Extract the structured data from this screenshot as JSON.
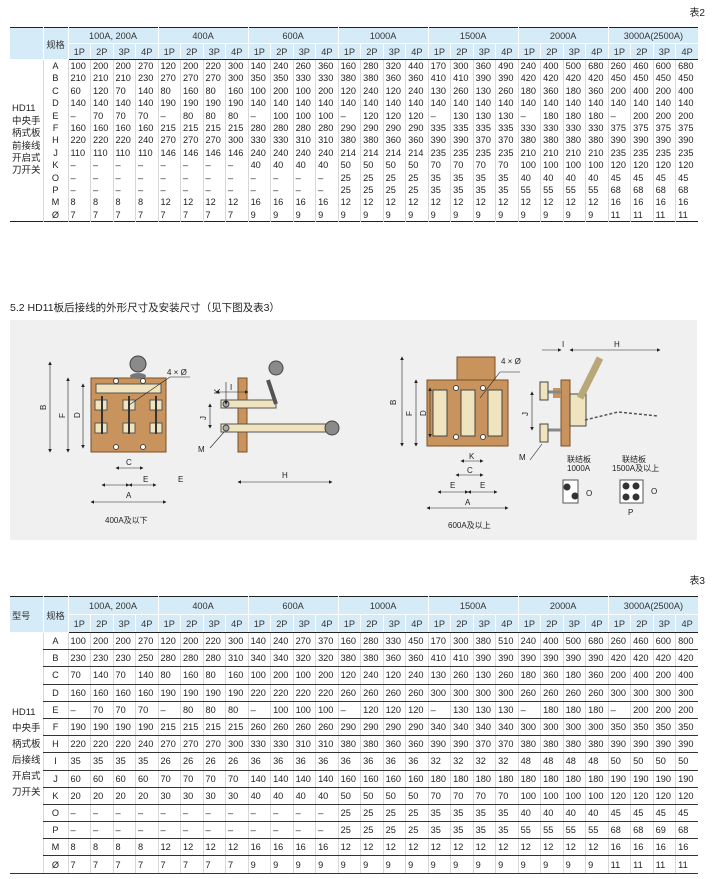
{
  "table2": {
    "label": "表2",
    "model_header": "",
    "spec_header": "规格",
    "model_label_lines": [
      "HD11",
      "中央手",
      "柄式板",
      "前接线",
      "开启式",
      "刀开关"
    ],
    "groups": [
      "100A, 200A",
      "400A",
      "600A",
      "1000A",
      "1500A",
      "2000A",
      "3000A(2500A)"
    ],
    "poles": [
      "1P",
      "2P",
      "3P",
      "4P"
    ],
    "rows": [
      {
        "spec": "A",
        "values": [
          "100",
          "200",
          "200",
          "270",
          "120",
          "200",
          "220",
          "300",
          "140",
          "240",
          "260",
          "360",
          "160",
          "280",
          "320",
          "440",
          "170",
          "300",
          "360",
          "490",
          "240",
          "400",
          "500",
          "680",
          "260",
          "460",
          "600",
          "680"
        ]
      },
      {
        "spec": "B",
        "values": [
          "210",
          "210",
          "210",
          "230",
          "270",
          "270",
          "270",
          "300",
          "350",
          "350",
          "330",
          "330",
          "380",
          "380",
          "360",
          "360",
          "410",
          "410",
          "390",
          "390",
          "420",
          "420",
          "420",
          "420",
          "450",
          "450",
          "450",
          "450"
        ]
      },
      {
        "spec": "C",
        "values": [
          "60",
          "120",
          "70",
          "140",
          "80",
          "160",
          "80",
          "160",
          "100",
          "200",
          "100",
          "200",
          "120",
          "240",
          "120",
          "240",
          "130",
          "260",
          "130",
          "260",
          "180",
          "360",
          "180",
          "360",
          "200",
          "400",
          "200",
          "400"
        ]
      },
      {
        "spec": "D",
        "values": [
          "140",
          "140",
          "140",
          "140",
          "190",
          "190",
          "190",
          "190",
          "140",
          "140",
          "140",
          "140",
          "140",
          "140",
          "140",
          "140",
          "140",
          "140",
          "140",
          "140",
          "140",
          "140",
          "140",
          "140",
          "140",
          "140",
          "140",
          "140"
        ]
      },
      {
        "spec": "E",
        "values": [
          "–",
          "70",
          "70",
          "70",
          "–",
          "80",
          "80",
          "80",
          "–",
          "100",
          "100",
          "100",
          "–",
          "120",
          "120",
          "120",
          "–",
          "130",
          "130",
          "130",
          "–",
          "180",
          "180",
          "180",
          "–",
          "200",
          "200",
          "200"
        ]
      },
      {
        "spec": "F",
        "values": [
          "160",
          "160",
          "160",
          "160",
          "215",
          "215",
          "215",
          "215",
          "280",
          "280",
          "280",
          "280",
          "290",
          "290",
          "290",
          "290",
          "335",
          "335",
          "335",
          "335",
          "330",
          "330",
          "330",
          "330",
          "375",
          "375",
          "375",
          "375"
        ]
      },
      {
        "spec": "H",
        "values": [
          "220",
          "220",
          "220",
          "240",
          "270",
          "270",
          "270",
          "300",
          "330",
          "330",
          "310",
          "310",
          "380",
          "380",
          "360",
          "360",
          "390",
          "390",
          "370",
          "370",
          "380",
          "380",
          "380",
          "380",
          "390",
          "390",
          "390",
          "390"
        ]
      },
      {
        "spec": "J",
        "values": [
          "110",
          "110",
          "110",
          "110",
          "146",
          "146",
          "146",
          "146",
          "240",
          "240",
          "240",
          "240",
          "214",
          "214",
          "214",
          "214",
          "235",
          "235",
          "235",
          "235",
          "210",
          "210",
          "210",
          "210",
          "235",
          "235",
          "235",
          "235"
        ]
      },
      {
        "spec": "K",
        "values": [
          "–",
          "–",
          "–",
          "–",
          "–",
          "–",
          "–",
          "–",
          "40",
          "40",
          "40",
          "40",
          "50",
          "50",
          "50",
          "50",
          "70",
          "70",
          "70",
          "70",
          "100",
          "100",
          "100",
          "100",
          "120",
          "120",
          "120",
          "120"
        ]
      },
      {
        "spec": "O",
        "values": [
          "–",
          "–",
          "–",
          "–",
          "–",
          "–",
          "–",
          "–",
          "–",
          "–",
          "–",
          "–",
          "25",
          "25",
          "25",
          "25",
          "35",
          "35",
          "35",
          "35",
          "40",
          "40",
          "40",
          "40",
          "45",
          "45",
          "45",
          "45"
        ]
      },
      {
        "spec": "P",
        "values": [
          "–",
          "–",
          "–",
          "–",
          "–",
          "–",
          "–",
          "–",
          "–",
          "–",
          "–",
          "–",
          "25",
          "25",
          "25",
          "25",
          "35",
          "35",
          "35",
          "35",
          "55",
          "55",
          "55",
          "55",
          "68",
          "68",
          "68",
          "68"
        ]
      },
      {
        "spec": "M",
        "values": [
          "8",
          "8",
          "8",
          "8",
          "12",
          "12",
          "12",
          "12",
          "16",
          "16",
          "16",
          "16",
          "12",
          "12",
          "12",
          "12",
          "12",
          "12",
          "12",
          "12",
          "12",
          "12",
          "12",
          "12",
          "16",
          "16",
          "16",
          "16"
        ]
      },
      {
        "spec": "Ø",
        "values": [
          "7",
          "7",
          "7",
          "7",
          "7",
          "7",
          "7",
          "7",
          "9",
          "9",
          "9",
          "9",
          "9",
          "9",
          "9",
          "9",
          "9",
          "9",
          "9",
          "9",
          "9",
          "9",
          "9",
          "9",
          "11",
          "11",
          "11",
          "11"
        ]
      }
    ]
  },
  "section_title": "5.2 HD11板后接线的外形尺寸及安装尺寸（见下图及表3）",
  "diagram": {
    "left_caption": "400A及以下",
    "right_caption": "600A及以上",
    "holes_label": "4 × Ø",
    "link_plate_1000": [
      "联结板",
      "1000A"
    ],
    "link_plate_1500": [
      "联结板",
      "1500A及以上"
    ],
    "dims": {
      "A": "A",
      "B": "B",
      "C": "C",
      "D": "D",
      "E": "E",
      "F": "F",
      "H": "H",
      "I": "I",
      "J": "J",
      "K": "K",
      "M": "M",
      "O": "O",
      "P": "P"
    },
    "colors": {
      "plate": "#c8935c",
      "plate_dark": "#8a5a2e",
      "blade": "#efe4bd",
      "knob": "#8a8a8a",
      "panel": "#f0f0f0"
    }
  },
  "table3": {
    "label": "表3",
    "model_header": "型号",
    "spec_header": "规格",
    "model_label_lines": [
      "HD11",
      "中央手",
      "柄式板",
      "后接线",
      "开启式",
      "刀开关"
    ],
    "groups": [
      "100A, 200A",
      "400A",
      "600A",
      "1000A",
      "1500A",
      "2000A",
      "3000A(2500A)"
    ],
    "poles": [
      "1P",
      "2P",
      "3P",
      "4P"
    ],
    "rows": [
      {
        "spec": "A",
        "values": [
          "100",
          "200",
          "200",
          "270",
          "120",
          "200",
          "220",
          "300",
          "140",
          "240",
          "270",
          "370",
          "160",
          "280",
          "330",
          "450",
          "170",
          "300",
          "380",
          "510",
          "240",
          "400",
          "500",
          "680",
          "260",
          "460",
          "600",
          "800"
        ]
      },
      {
        "spec": "B",
        "values": [
          "230",
          "230",
          "230",
          "250",
          "280",
          "280",
          "280",
          "310",
          "340",
          "340",
          "320",
          "320",
          "380",
          "380",
          "360",
          "360",
          "410",
          "410",
          "390",
          "390",
          "390",
          "390",
          "390",
          "390",
          "420",
          "420",
          "420",
          "420"
        ]
      },
      {
        "spec": "C",
        "values": [
          "70",
          "140",
          "70",
          "140",
          "80",
          "160",
          "80",
          "160",
          "100",
          "200",
          "100",
          "200",
          "120",
          "240",
          "120",
          "240",
          "130",
          "260",
          "130",
          "260",
          "180",
          "360",
          "180",
          "360",
          "200",
          "400",
          "200",
          "400"
        ]
      },
      {
        "spec": "D",
        "values": [
          "160",
          "160",
          "160",
          "160",
          "190",
          "190",
          "190",
          "190",
          "220",
          "220",
          "220",
          "220",
          "260",
          "260",
          "260",
          "260",
          "300",
          "300",
          "300",
          "300",
          "260",
          "260",
          "260",
          "260",
          "300",
          "300",
          "300",
          "300"
        ]
      },
      {
        "spec": "E",
        "values": [
          "–",
          "70",
          "70",
          "70",
          "–",
          "80",
          "80",
          "80",
          "–",
          "100",
          "100",
          "100",
          "–",
          "120",
          "120",
          "120",
          "–",
          "130",
          "130",
          "130",
          "–",
          "180",
          "180",
          "180",
          "–",
          "200",
          "200",
          "200"
        ]
      },
      {
        "spec": "F",
        "values": [
          "190",
          "190",
          "190",
          "190",
          "215",
          "215",
          "215",
          "215",
          "260",
          "260",
          "260",
          "260",
          "290",
          "290",
          "290",
          "290",
          "340",
          "340",
          "340",
          "340",
          "300",
          "300",
          "300",
          "300",
          "350",
          "350",
          "350",
          "350"
        ]
      },
      {
        "spec": "H",
        "values": [
          "220",
          "220",
          "220",
          "240",
          "270",
          "270",
          "270",
          "300",
          "330",
          "330",
          "310",
          "310",
          "380",
          "380",
          "360",
          "360",
          "390",
          "390",
          "370",
          "370",
          "380",
          "380",
          "380",
          "380",
          "390",
          "390",
          "390",
          "390"
        ]
      },
      {
        "spec": "I",
        "values": [
          "35",
          "35",
          "35",
          "35",
          "26",
          "26",
          "26",
          "26",
          "36",
          "36",
          "36",
          "36",
          "36",
          "36",
          "36",
          "36",
          "32",
          "32",
          "32",
          "32",
          "48",
          "48",
          "48",
          "48",
          "50",
          "50",
          "50",
          "50"
        ]
      },
      {
        "spec": "J",
        "values": [
          "60",
          "60",
          "60",
          "60",
          "70",
          "70",
          "70",
          "70",
          "140",
          "140",
          "140",
          "140",
          "160",
          "160",
          "160",
          "160",
          "180",
          "180",
          "180",
          "180",
          "180",
          "180",
          "180",
          "180",
          "190",
          "190",
          "190",
          "190"
        ]
      },
      {
        "spec": "K",
        "values": [
          "20",
          "20",
          "20",
          "20",
          "30",
          "30",
          "30",
          "30",
          "40",
          "40",
          "40",
          "40",
          "50",
          "50",
          "50",
          "50",
          "70",
          "70",
          "70",
          "70",
          "100",
          "100",
          "100",
          "100",
          "120",
          "120",
          "120",
          "120"
        ]
      },
      {
        "spec": "O",
        "values": [
          "–",
          "–",
          "–",
          "–",
          "–",
          "–",
          "–",
          "–",
          "–",
          "–",
          "–",
          "–",
          "25",
          "25",
          "25",
          "25",
          "35",
          "35",
          "35",
          "35",
          "40",
          "40",
          "40",
          "40",
          "45",
          "45",
          "45",
          "45"
        ]
      },
      {
        "spec": "P",
        "values": [
          "–",
          "–",
          "–",
          "–",
          "–",
          "–",
          "–",
          "–",
          "–",
          "–",
          "–",
          "–",
          "25",
          "25",
          "25",
          "25",
          "35",
          "35",
          "35",
          "35",
          "55",
          "55",
          "55",
          "55",
          "68",
          "68",
          "69",
          "68"
        ]
      },
      {
        "spec": "M",
        "values": [
          "8",
          "8",
          "8",
          "8",
          "12",
          "12",
          "12",
          "12",
          "16",
          "16",
          "16",
          "16",
          "12",
          "12",
          "12",
          "12",
          "12",
          "12",
          "12",
          "12",
          "12",
          "12",
          "12",
          "12",
          "16",
          "16",
          "16",
          "16"
        ]
      },
      {
        "spec": "Ø",
        "values": [
          "7",
          "7",
          "7",
          "7",
          "7",
          "7",
          "7",
          "7",
          "9",
          "9",
          "9",
          "9",
          "9",
          "9",
          "9",
          "9",
          "9",
          "9",
          "9",
          "9",
          "9",
          "9",
          "9",
          "9",
          "11",
          "11",
          "11",
          "11"
        ]
      }
    ]
  }
}
